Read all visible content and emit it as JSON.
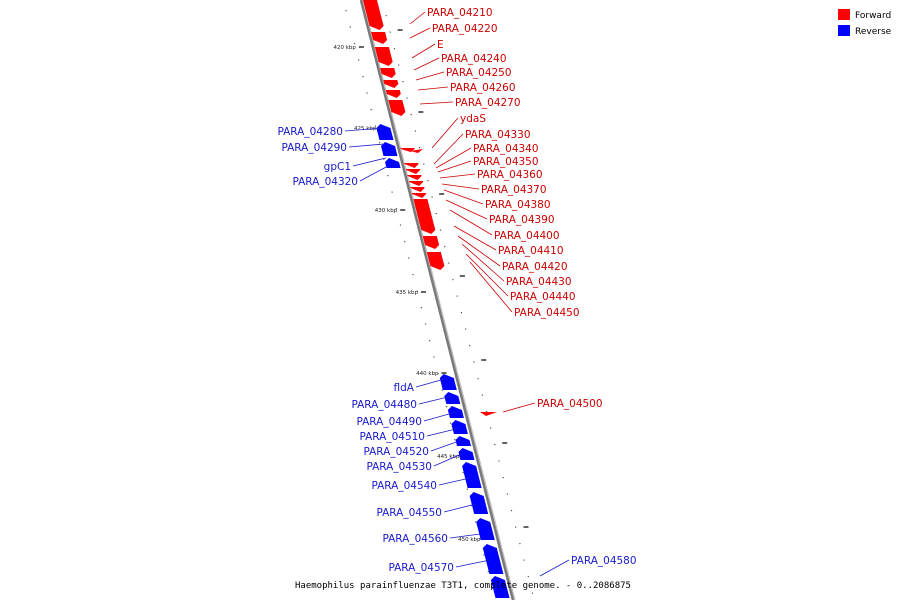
{
  "colors": {
    "forward": "#ff0000",
    "reverse": "#0000ff",
    "forward_label": "#cc0000",
    "reverse_label": "#1a1acc"
  },
  "legend": {
    "forward": "Forward",
    "reverse": "Reverse"
  },
  "caption": "Haemophilus parainfluenzae T3T1, complete genome. - 0..2086875",
  "scale": {
    "unit": "kbp",
    "major_ticks_kbp": [
      420,
      425,
      430,
      435,
      440,
      445,
      450
    ]
  },
  "forward_labels": [
    "PARA_04210",
    "PARA_04220",
    "E",
    "PARA_04240",
    "PARA_04250",
    "PARA_04260",
    "PARA_04270",
    "ydaS",
    "PARA_04330",
    "PARA_04340",
    "PARA_04350",
    "PARA_04360",
    "PARA_04370",
    "PARA_04380",
    "PARA_04390",
    "PARA_04400",
    "PARA_04410",
    "PARA_04420",
    "PARA_04430",
    "PARA_04440",
    "PARA_04450",
    "PARA_04500"
  ],
  "reverse_labels": [
    "PARA_04280",
    "PARA_04290",
    "gpC1",
    "PARA_04320",
    "fldA",
    "PARA_04480",
    "PARA_04490",
    "PARA_04510",
    "PARA_04520",
    "PARA_04530",
    "PARA_04540",
    "PARA_04550",
    "PARA_04560",
    "PARA_04570",
    "PARA_04580"
  ]
}
